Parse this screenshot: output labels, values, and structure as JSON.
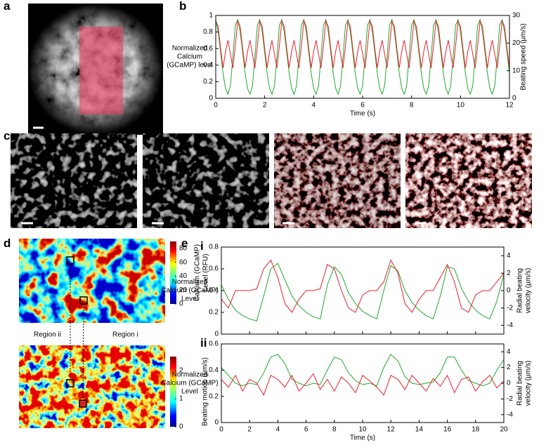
{
  "panel_letters": [
    "a",
    "b",
    "c",
    "d",
    "e"
  ],
  "regions": [
    "Region ii",
    "Region i"
  ],
  "colorbars": [
    {
      "label": [
        "Calcium (GCaMP)",
        "Level (RFU)"
      ],
      "lim": [
        0,
        90
      ],
      "ticks": [
        0,
        20,
        40,
        60,
        80
      ]
    },
    {
      "label": [
        "Beating motion (µm/s)"
      ],
      "lim": [
        0,
        2.5
      ],
      "ticks": [
        0,
        1,
        2
      ]
    }
  ],
  "chart_data": [
    {
      "type": "line",
      "xlabel": "Time (s)",
      "ylabel": [
        "Normalized",
        "Calcium",
        "(GCaMP) level"
      ],
      "y2label": [
        "Beating speed (µm/s)"
      ],
      "xlim": [
        0,
        12
      ],
      "xticks": [
        0,
        2,
        4,
        6,
        8,
        10,
        12
      ],
      "ylim": [
        0,
        1
      ],
      "yticks": [
        0,
        0.2,
        0.4,
        0.6,
        0.8,
        1
      ],
      "y2lim": [
        0,
        30
      ],
      "y2ticks": [
        0,
        10,
        20,
        30
      ],
      "x": [
        0,
        0.1,
        0.2,
        0.3,
        0.4,
        0.5,
        0.6,
        0.7,
        0.8,
        0.9,
        1,
        1.1,
        1.2,
        1.3,
        1.4,
        1.5,
        1.6,
        1.7,
        1.8,
        1.9,
        2,
        2.1,
        2.2,
        2.3,
        2.4,
        2.5,
        2.6,
        2.7,
        2.8,
        2.9,
        3,
        3.1,
        3.2,
        3.3,
        3.4,
        3.5,
        3.6,
        3.7,
        3.8,
        3.9,
        4,
        4.1,
        4.2,
        4.3,
        4.4,
        4.5,
        4.6,
        4.7,
        4.8,
        4.9,
        5,
        5.1,
        5.2,
        5.3,
        5.4,
        5.5,
        5.6,
        5.7,
        5.8,
        5.9,
        6,
        6.1,
        6.2,
        6.3,
        6.4,
        6.5,
        6.6,
        6.7,
        6.8,
        6.9,
        7,
        7.1,
        7.2,
        7.3,
        7.4,
        7.5,
        7.6,
        7.7,
        7.8,
        7.9,
        8,
        8.1,
        8.2,
        8.3,
        8.4,
        8.5,
        8.6,
        8.7,
        8.8,
        8.9,
        9,
        9.1,
        9.2,
        9.3,
        9.4,
        9.5,
        9.6,
        9.7,
        9.8,
        9.9,
        10,
        10.1,
        10.2,
        10.3,
        10.4,
        10.5,
        10.6,
        10.7,
        10.8,
        10.9,
        11,
        11.1,
        11.2,
        11.3,
        11.4,
        11.5,
        11.6,
        11.7,
        11.8,
        11.9,
        12
      ],
      "series": [
        {
          "color": "#22a830",
          "values": [
            0.95,
            0.8,
            0.55,
            0.3,
            0.12,
            0.05,
            0.15,
            0.5,
            0.88,
            0.95,
            0.8,
            0.55,
            0.3,
            0.12,
            0.05,
            0.15,
            0.5,
            0.88,
            0.95,
            0.8,
            0.55,
            0.3,
            0.12,
            0.05,
            0.15,
            0.5,
            0.88,
            0.95,
            0.8,
            0.55,
            0.3,
            0.12,
            0.05,
            0.15,
            0.5,
            0.88,
            0.95,
            0.8,
            0.55,
            0.3,
            0.12,
            0.05,
            0.15,
            0.5,
            0.88,
            0.95,
            0.8,
            0.55,
            0.3,
            0.12,
            0.05,
            0.15,
            0.5,
            0.88,
            0.95,
            0.8,
            0.55,
            0.3,
            0.12,
            0.05,
            0.15,
            0.5,
            0.88,
            0.95,
            0.8,
            0.55,
            0.3,
            0.12,
            0.05,
            0.15,
            0.5,
            0.88,
            0.95,
            0.8,
            0.55,
            0.3,
            0.12,
            0.05,
            0.15,
            0.5,
            0.88,
            0.95,
            0.8,
            0.55,
            0.3,
            0.12,
            0.05,
            0.15,
            0.5,
            0.88,
            0.95,
            0.8,
            0.55,
            0.3,
            0.12,
            0.05,
            0.15,
            0.5,
            0.88,
            0.95,
            0.8,
            0.55,
            0.3,
            0.12,
            0.05,
            0.15,
            0.5,
            0.88,
            0.95,
            0.8,
            0.55,
            0.3,
            0.12,
            0.05,
            0.15,
            0.5,
            0.88,
            0.95,
            0.8,
            0.55,
            0.3
          ]
        },
        {
          "color": "#e8202a",
          "axis": "y2",
          "values": [
            28,
            26,
            18,
            11,
            17,
            21,
            16,
            11,
            19,
            28,
            26,
            18,
            11,
            17,
            21,
            16,
            11,
            19,
            28,
            26,
            18,
            11,
            17,
            21,
            16,
            11,
            19,
            28,
            26,
            18,
            11,
            17,
            21,
            16,
            11,
            19,
            28,
            26,
            18,
            11,
            17,
            21,
            16,
            11,
            19,
            28,
            26,
            18,
            11,
            17,
            21,
            16,
            11,
            19,
            28,
            26,
            18,
            11,
            17,
            21,
            16,
            11,
            19,
            28,
            26,
            18,
            11,
            17,
            21,
            16,
            11,
            19,
            28,
            26,
            18,
            11,
            17,
            21,
            16,
            11,
            19,
            28,
            26,
            18,
            11,
            17,
            21,
            16,
            11,
            19,
            28,
            26,
            18,
            11,
            17,
            21,
            16,
            11,
            19,
            28,
            26,
            18,
            11,
            17,
            21,
            16,
            11,
            19,
            28,
            26,
            18,
            11,
            17,
            21,
            16,
            11,
            19,
            28,
            26,
            18,
            11
          ]
        }
      ]
    },
    {
      "type": "line",
      "panel": "i",
      "ylabel": [
        "Normalized",
        "Calcium (GCaMP)",
        "Level"
      ],
      "y2label": [
        "Radial beating",
        "velocity (µm/s)"
      ],
      "xtick_labels": false,
      "xlim": [
        0,
        20
      ],
      "xticks": [
        0,
        2,
        4,
        6,
        8,
        10,
        12,
        14,
        16,
        18,
        20
      ],
      "ylim": [
        0,
        0.8
      ],
      "yticks": [
        0,
        0.2,
        0.4,
        0.6,
        0.8
      ],
      "y2lim": [
        -5,
        5
      ],
      "y2ticks": [
        -4,
        -2,
        0,
        2,
        4
      ],
      "x": [
        0,
        0.5,
        1,
        1.5,
        2,
        2.5,
        3,
        3.5,
        4,
        4.5,
        5,
        5.5,
        6,
        6.5,
        7,
        7.5,
        8,
        8.5,
        9,
        9.5,
        10,
        10.5,
        11,
        11.5,
        12,
        12.5,
        13,
        13.5,
        14,
        14.5,
        15,
        15.5,
        16,
        16.5,
        17,
        17.5,
        18,
        18.5,
        19,
        19.5,
        20
      ],
      "series": [
        {
          "color": "#22a830",
          "values": [
            0.45,
            0.32,
            0.22,
            0.17,
            0.14,
            0.12,
            0.35,
            0.6,
            0.65,
            0.5,
            0.35,
            0.26,
            0.2,
            0.16,
            0.14,
            0.45,
            0.62,
            0.55,
            0.38,
            0.28,
            0.21,
            0.17,
            0.14,
            0.4,
            0.63,
            0.58,
            0.4,
            0.29,
            0.22,
            0.17,
            0.14,
            0.35,
            0.62,
            0.6,
            0.42,
            0.3,
            0.22,
            0.17,
            0.14,
            0.3,
            0.55
          ]
        },
        {
          "color": "#e8202a",
          "axis": "y2",
          "values": [
            -1,
            -2,
            0,
            0,
            0,
            0.2,
            2.5,
            3.5,
            1.5,
            -1.5,
            -2.5,
            -1,
            0,
            0,
            0.2,
            3,
            2.5,
            0,
            -2,
            -2.5,
            -0.5,
            0,
            0,
            1,
            3.5,
            2,
            -1.5,
            -2.5,
            -1,
            0,
            0,
            1.5,
            3,
            1,
            -2,
            -2.5,
            -0.5,
            0,
            0,
            1,
            2
          ]
        }
      ]
    },
    {
      "type": "line",
      "panel": "ii",
      "xlabel": "Time (s)",
      "ylabel": [
        "Normalized",
        "Calcium (GCaMP)",
        "Level"
      ],
      "y2label": [
        "Radial beating",
        "velocity (µm/s)"
      ],
      "xlim": [
        0,
        20
      ],
      "xticks": [
        0,
        2,
        4,
        6,
        8,
        10,
        12,
        14,
        16,
        18,
        20
      ],
      "ylim": [
        0,
        0.6
      ],
      "yticks": [
        0,
        0.2,
        0.4,
        0.6
      ],
      "y2lim": [
        -5,
        5
      ],
      "y2ticks": [
        -4,
        -2,
        0,
        2,
        4
      ],
      "x": [
        0,
        0.5,
        1,
        1.5,
        2,
        2.5,
        3,
        3.5,
        4,
        4.5,
        5,
        5.5,
        6,
        6.5,
        7,
        7.5,
        8,
        8.5,
        9,
        9.5,
        10,
        10.5,
        11,
        11.5,
        12,
        12.5,
        13,
        13.5,
        14,
        14.5,
        15,
        15.5,
        16,
        16.5,
        17,
        17.5,
        18,
        18.5,
        19,
        19.5,
        20
      ],
      "series": [
        {
          "color": "#22a830",
          "values": [
            0.42,
            0.36,
            0.3,
            0.28,
            0.3,
            0.29,
            0.38,
            0.5,
            0.52,
            0.45,
            0.33,
            0.3,
            0.28,
            0.3,
            0.29,
            0.4,
            0.5,
            0.48,
            0.38,
            0.32,
            0.29,
            0.3,
            0.28,
            0.42,
            0.52,
            0.47,
            0.35,
            0.3,
            0.29,
            0.3,
            0.31,
            0.38,
            0.5,
            0.5,
            0.4,
            0.32,
            0.3,
            0.28,
            0.3,
            0.4,
            0.48
          ]
        },
        {
          "color": "#e8202a",
          "axis": "y2",
          "values": [
            0.5,
            -0.5,
            1,
            -1,
            0.5,
            0,
            -1.5,
            1,
            0.5,
            -0.5,
            1,
            -1,
            0,
            1.2,
            -0.8,
            0.5,
            -1,
            0.8,
            0,
            -1.2,
            1,
            0.3,
            -0.5,
            -1.5,
            1,
            0.5,
            -0.8,
            1,
            0,
            -1,
            0.6,
            -0.4,
            1,
            -1.2,
            0.5,
            0.8,
            -1,
            0.2,
            1,
            -0.6,
            0.3
          ]
        }
      ]
    }
  ]
}
